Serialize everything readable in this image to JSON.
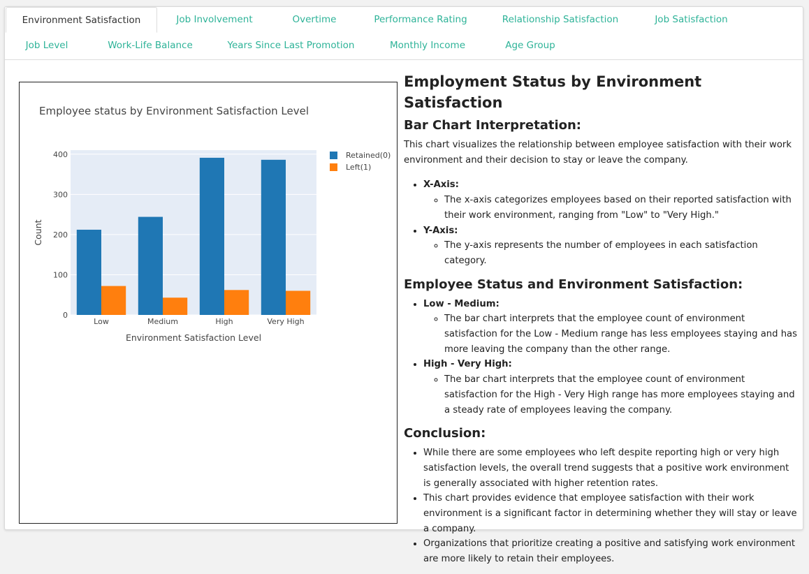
{
  "tabs": [
    {
      "label": "Environment Satisfaction",
      "active": true
    },
    {
      "label": "Job Involvement"
    },
    {
      "label": "Overtime"
    },
    {
      "label": "Performance Rating"
    },
    {
      "label": "Relationship Satisfaction"
    },
    {
      "label": "Job Satisfaction"
    },
    {
      "label": "Job Level"
    },
    {
      "label": "Work-Life Balance"
    },
    {
      "label": "Years Since Last Promotion"
    },
    {
      "label": "Monthly Income"
    },
    {
      "label": "Age Group"
    }
  ],
  "colors": {
    "retained": "#1f77b4",
    "left": "#ff7f0e",
    "tab_accent": "#2eb398",
    "plot_bg": "#e5ecf6"
  },
  "chart_data": {
    "type": "bar",
    "title": "Employee status by Environment Satisfaction Level",
    "xlabel": "Environment Satisfaction Level",
    "ylabel": "Count",
    "categories": [
      "Low",
      "Medium",
      "High",
      "Very High"
    ],
    "series": [
      {
        "name": "Retained(0)",
        "values": [
          212,
          244,
          391,
          386
        ]
      },
      {
        "name": "Left(1)",
        "values": [
          72,
          43,
          62,
          60
        ]
      }
    ],
    "ylim": [
      0,
      410
    ],
    "yticks": [
      0,
      100,
      200,
      300,
      400
    ],
    "grid": true,
    "legend": "top-right"
  },
  "content": {
    "title": "Employment Status by Environment Satisfaction",
    "interp_heading": "Bar Chart Interpretation:",
    "interp_text": "This chart visualizes the relationship between employee satisfaction with their work environment and their decision to stay or leave the company.",
    "xaxis_label": "X-Axis:",
    "xaxis_text": "The x-axis categorizes employees based on their reported satisfaction with their work environment, ranging from \"Low\" to \"Very High.\"",
    "yaxis_label": "Y-Axis:",
    "yaxis_text": "The y-axis represents the number of employees in each satisfaction category.",
    "status_heading": "Employee Status and Environment Satisfaction:",
    "lowmed_label": "Low - Medium:",
    "lowmed_text": "The bar chart interprets that the employee count of environment satisfaction for the Low - Medium range has less employees staying and has more leaving the company than the other range.",
    "highvh_label": "High - Very High:",
    "highvh_text": "The bar chart interprets that the employee count of environment satisfaction for the High - Very High range has more employees staying and a steady rate of employees leaving the company.",
    "conclusion_heading": "Conclusion:",
    "conclusions": [
      "While there are some employees who left despite reporting high or very high satisfaction levels, the overall trend suggests that a positive work environment is generally associated with higher retention rates.",
      "This chart provides evidence that employee satisfaction with their work environment is a significant factor in determining whether they will stay or leave a company.",
      "Organizations that prioritize creating a positive and satisfying work environment are more likely to retain their employees."
    ]
  }
}
